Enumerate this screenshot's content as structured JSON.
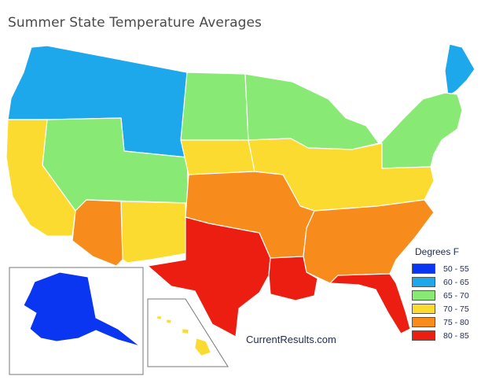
{
  "title": "Summer State Temperature Averages",
  "attribution": "CurrentResults.com",
  "legend": {
    "title": "Degrees F",
    "items": [
      {
        "label": "50 - 55",
        "color": "#0a36f2"
      },
      {
        "label": "60 - 65",
        "color": "#1ea8ec"
      },
      {
        "label": "65 - 70",
        "color": "#88ea74"
      },
      {
        "label": "70 - 75",
        "color": "#fbdb2f"
      },
      {
        "label": "75 - 80",
        "color": "#f78c1d"
      },
      {
        "label": "80 - 85",
        "color": "#ec1e12"
      }
    ]
  },
  "regions": [
    {
      "name": "northwest-region",
      "band": "60 - 65",
      "color": "#1ea8ec"
    },
    {
      "name": "maine",
      "band": "60 - 65",
      "color": "#1ea8ec"
    },
    {
      "name": "great-basin-region",
      "band": "65 - 70",
      "color": "#88ea74"
    },
    {
      "name": "northern-plains-region",
      "band": "65 - 70",
      "color": "#88ea74"
    },
    {
      "name": "great-lakes-region",
      "band": "65 - 70",
      "color": "#88ea74"
    },
    {
      "name": "northeast-region",
      "band": "65 - 70",
      "color": "#88ea74"
    },
    {
      "name": "california",
      "band": "70 - 75",
      "color": "#fbdb2f"
    },
    {
      "name": "nebraska-region",
      "band": "70 - 75",
      "color": "#fbdb2f"
    },
    {
      "name": "new-mexico",
      "band": "70 - 75",
      "color": "#fbdb2f"
    },
    {
      "name": "midwest-region",
      "band": "70 - 75",
      "color": "#fbdb2f"
    },
    {
      "name": "hawaii",
      "band": "70 - 75",
      "color": "#fbdb2f"
    },
    {
      "name": "arizona",
      "band": "75 - 80",
      "color": "#f78c1d"
    },
    {
      "name": "south-central-region",
      "band": "75 - 80",
      "color": "#f78c1d"
    },
    {
      "name": "southeast-region",
      "band": "75 - 80",
      "color": "#f78c1d"
    },
    {
      "name": "texas",
      "band": "80 - 85",
      "color": "#ec1e12"
    },
    {
      "name": "louisiana",
      "band": "80 - 85",
      "color": "#ec1e12"
    },
    {
      "name": "florida",
      "band": "80 - 85",
      "color": "#ec1e12"
    },
    {
      "name": "alaska",
      "band": "50 - 55",
      "color": "#0a36f2"
    }
  ]
}
